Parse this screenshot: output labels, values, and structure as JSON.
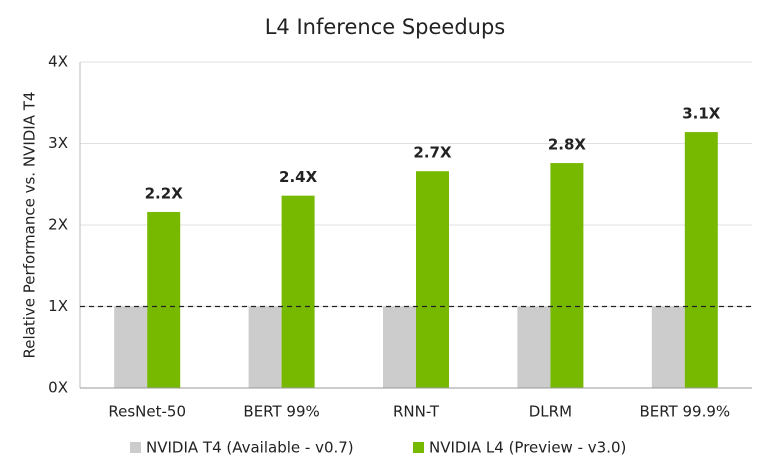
{
  "chart_data": {
    "type": "bar",
    "title": "L4 Inference Speedups",
    "y_label": "Relative Performance vs. NVIDIA T4",
    "categories": [
      "ResNet-50",
      "BERT 99%",
      "RNN-T",
      "DLRM",
      "BERT 99.9%"
    ],
    "series": [
      {
        "name": "NVIDIA T4 (Available - v0.7)",
        "color": "#cccccc",
        "values": [
          1,
          1,
          1,
          1,
          1
        ]
      },
      {
        "name": "NVIDIA L4 (Preview - v3.0)",
        "color": "#76b900",
        "values": [
          2.16,
          2.36,
          2.66,
          2.76,
          3.14
        ],
        "value_labels": [
          "2.2X",
          "2.4X",
          "2.7X",
          "2.8X",
          "3.1X"
        ]
      }
    ],
    "reference_line": 1,
    "ylim": [
      0,
      4
    ],
    "yticks": [
      {
        "value": 0,
        "label": "0X"
      },
      {
        "value": 1,
        "label": "1X"
      },
      {
        "value": 2,
        "label": "2X"
      },
      {
        "value": 3,
        "label": "3X"
      },
      {
        "value": 4,
        "label": "4X"
      }
    ],
    "grid": true,
    "legend": "bottom"
  }
}
